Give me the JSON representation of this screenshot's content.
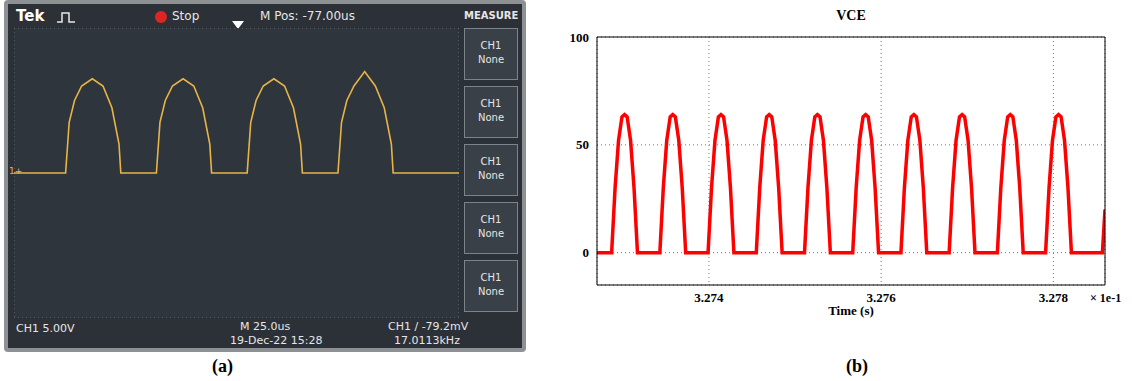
{
  "chart_data": [
    {
      "type": "line",
      "caption": "(a)",
      "annotations": [
        "Tek",
        "Stop",
        "M Pos: -77.00us",
        "MEASURE",
        "CH1 5.00V",
        "M 25.0us",
        "19-Dec-22 15:28",
        "CH1 / -79.2mV",
        "17.0113kHz",
        "1+"
      ],
      "menu": [
        {
          "label": "CH1",
          "value": "None"
        },
        {
          "label": "CH1",
          "value": "None"
        },
        {
          "label": "CH1",
          "value": "None"
        },
        {
          "label": "CH1",
          "value": "None"
        },
        {
          "label": "CH1",
          "value": "None"
        }
      ],
      "x": [
        0,
        29,
        31,
        34,
        38,
        44,
        50,
        55,
        59,
        60,
        80,
        82,
        85,
        89,
        95,
        101,
        106,
        110,
        111,
        131,
        133,
        136,
        140,
        146,
        152,
        157,
        161,
        162,
        182,
        184,
        187,
        191,
        197,
        203,
        208,
        212,
        213,
        250
      ],
      "values": [
        0,
        0,
        7,
        10,
        12,
        13,
        12,
        9,
        4,
        0,
        0,
        7,
        10,
        12,
        13,
        12,
        9,
        4,
        0,
        0,
        7,
        10,
        12,
        13,
        12,
        9,
        4,
        0,
        0,
        7,
        10,
        12,
        14,
        12,
        9,
        4,
        0,
        0
      ],
      "color": "#e8b446",
      "xlim": [
        0,
        250
      ],
      "xticks": [
        0,
        25,
        50,
        75,
        100,
        125,
        150,
        175,
        200,
        225,
        250
      ],
      "ylim": [
        -20,
        20
      ],
      "yticks": [
        -20,
        -15,
        -10,
        -5,
        0,
        5,
        10,
        15,
        20
      ],
      "grid": true,
      "tick_labels": false
    },
    {
      "type": "line",
      "title": "VCE",
      "xlabel": "Time (s)",
      "annotations": [
        "× 1e-1"
      ],
      "caption": "(b)",
      "x": [
        3.2727,
        3.27287,
        3.27291,
        3.27295,
        3.27299,
        3.27302,
        3.27305,
        3.27309,
        3.27313,
        3.27317,
        3.27343,
        3.27347,
        3.27351,
        3.27355,
        3.27358,
        3.27361,
        3.27365,
        3.27369,
        3.27373,
        3.27399,
        3.27403,
        3.27407,
        3.27411,
        3.27414,
        3.27417,
        3.27421,
        3.27425,
        3.27429,
        3.27455,
        3.27459,
        3.27463,
        3.27467,
        3.2747,
        3.27473,
        3.27477,
        3.27481,
        3.27485,
        3.27511,
        3.27515,
        3.27519,
        3.27523,
        3.27526,
        3.27529,
        3.27533,
        3.27537,
        3.27541,
        3.27567,
        3.27571,
        3.27575,
        3.27579,
        3.27582,
        3.27585,
        3.27589,
        3.27593,
        3.27597,
        3.27623,
        3.27627,
        3.27631,
        3.27635,
        3.27638,
        3.27641,
        3.27645,
        3.27649,
        3.27653,
        3.27679,
        3.27683,
        3.27687,
        3.27691,
        3.27694,
        3.27697,
        3.27701,
        3.27705,
        3.27709,
        3.27735,
        3.27739,
        3.27743,
        3.27747,
        3.2775,
        3.27753,
        3.27757,
        3.27761,
        3.27765,
        3.27791,
        3.27795,
        3.27799,
        3.27803,
        3.27806,
        3.27809,
        3.27813,
        3.27817,
        3.27821,
        3.27857,
        3.2786
      ],
      "values": [
        0,
        0,
        30,
        52,
        63,
        64,
        63,
        52,
        30,
        0,
        0,
        30,
        52,
        63,
        64,
        63,
        52,
        30,
        0,
        0,
        30,
        52,
        63,
        64,
        63,
        52,
        30,
        0,
        0,
        30,
        52,
        63,
        64,
        63,
        52,
        30,
        0,
        0,
        30,
        52,
        63,
        64,
        63,
        52,
        30,
        0,
        0,
        30,
        52,
        63,
        64,
        63,
        52,
        30,
        0,
        0,
        30,
        52,
        63,
        64,
        63,
        52,
        30,
        0,
        0,
        30,
        52,
        63,
        64,
        63,
        52,
        30,
        0,
        0,
        30,
        52,
        63,
        64,
        63,
        52,
        30,
        0,
        0,
        30,
        52,
        63,
        64,
        63,
        52,
        30,
        0,
        0,
        20
      ],
      "color": "#ff0000",
      "xlim": [
        3.2727,
        3.2786
      ],
      "xticks": [
        3.274,
        3.276,
        3.278
      ],
      "ylim": [
        -15,
        100
      ],
      "yticks": [
        0,
        50,
        100
      ],
      "grid": true
    }
  ]
}
